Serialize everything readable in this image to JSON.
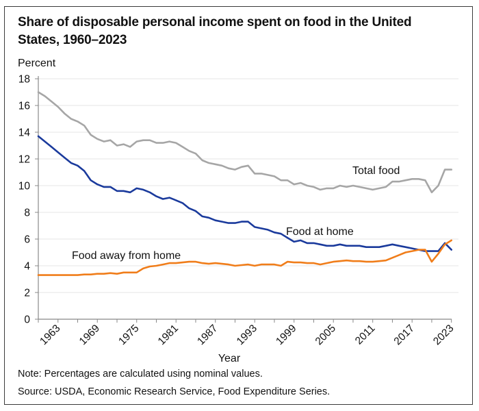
{
  "title": "Share of disposable personal income spent on food in the United States, 1960–2023",
  "unit_label": "Percent",
  "notes": {
    "note": "Note: Percentages are calculated using nominal values.",
    "source": "Source: USDA, Economic Research Service, Food Expenditure Series."
  },
  "chart_data": {
    "type": "line",
    "title": "Share of disposable personal income spent on food in the United States, 1960–2023",
    "xlabel": "Year",
    "ylabel": "Percent",
    "xlim": [
      1960,
      2023
    ],
    "ylim": [
      0,
      18
    ],
    "yticks": [
      0,
      2,
      4,
      6,
      8,
      10,
      12,
      14,
      16,
      18
    ],
    "xticks": [
      1963,
      1969,
      1975,
      1981,
      1987,
      1993,
      1999,
      2005,
      2011,
      2017,
      2023
    ],
    "grid": true,
    "legend": "inline labels",
    "x": [
      1960,
      1961,
      1962,
      1963,
      1964,
      1965,
      1966,
      1967,
      1968,
      1969,
      1970,
      1971,
      1972,
      1973,
      1974,
      1975,
      1976,
      1977,
      1978,
      1979,
      1980,
      1981,
      1982,
      1983,
      1984,
      1985,
      1986,
      1987,
      1988,
      1989,
      1990,
      1991,
      1992,
      1993,
      1994,
      1995,
      1996,
      1997,
      1998,
      1999,
      2000,
      2001,
      2002,
      2003,
      2004,
      2005,
      2006,
      2007,
      2008,
      2009,
      2010,
      2011,
      2012,
      2013,
      2014,
      2015,
      2016,
      2017,
      2018,
      2019,
      2020,
      2021,
      2022,
      2023
    ],
    "series": [
      {
        "name": "Total food",
        "color": "#a6a6a6",
        "values": [
          17.0,
          16.7,
          16.3,
          15.9,
          15.4,
          15.0,
          14.8,
          14.5,
          13.8,
          13.5,
          13.3,
          13.4,
          13.0,
          13.1,
          12.9,
          13.3,
          13.4,
          13.4,
          13.2,
          13.2,
          13.3,
          13.2,
          12.9,
          12.6,
          12.4,
          11.9,
          11.7,
          11.6,
          11.5,
          11.3,
          11.2,
          11.4,
          11.5,
          10.9,
          10.9,
          10.8,
          10.7,
          10.4,
          10.4,
          10.1,
          10.2,
          10.0,
          9.9,
          9.7,
          9.8,
          9.8,
          10.0,
          9.9,
          10.0,
          9.9,
          9.8,
          9.7,
          9.8,
          9.9,
          10.3,
          10.3,
          10.4,
          10.5,
          10.5,
          10.4,
          9.5,
          10.0,
          11.2,
          11.2
        ]
      },
      {
        "name": "Food at home",
        "color": "#1a3a9c",
        "values": [
          13.7,
          13.3,
          12.9,
          12.5,
          12.1,
          11.7,
          11.5,
          11.1,
          10.4,
          10.1,
          9.9,
          9.9,
          9.6,
          9.6,
          9.5,
          9.8,
          9.7,
          9.5,
          9.2,
          9.0,
          9.1,
          8.9,
          8.7,
          8.3,
          8.1,
          7.7,
          7.6,
          7.4,
          7.3,
          7.2,
          7.2,
          7.3,
          7.3,
          6.9,
          6.8,
          6.7,
          6.5,
          6.4,
          6.1,
          5.8,
          5.9,
          5.7,
          5.7,
          5.6,
          5.5,
          5.5,
          5.6,
          5.5,
          5.5,
          5.5,
          5.4,
          5.4,
          5.4,
          5.5,
          5.6,
          5.5,
          5.4,
          5.3,
          5.2,
          5.1,
          5.1,
          5.1,
          5.7,
          5.2
        ]
      },
      {
        "name": "Food away from home",
        "color": "#f07d1a",
        "values": [
          3.3,
          3.3,
          3.3,
          3.3,
          3.3,
          3.3,
          3.3,
          3.35,
          3.35,
          3.4,
          3.4,
          3.45,
          3.4,
          3.5,
          3.5,
          3.5,
          3.8,
          3.95,
          4.0,
          4.1,
          4.2,
          4.2,
          4.25,
          4.3,
          4.3,
          4.2,
          4.15,
          4.2,
          4.15,
          4.1,
          4.0,
          4.05,
          4.1,
          4.0,
          4.1,
          4.1,
          4.1,
          4.0,
          4.3,
          4.25,
          4.25,
          4.2,
          4.2,
          4.1,
          4.2,
          4.3,
          4.35,
          4.4,
          4.35,
          4.35,
          4.3,
          4.3,
          4.35,
          4.4,
          4.6,
          4.8,
          5.0,
          5.1,
          5.2,
          5.2,
          4.3,
          4.9,
          5.6,
          5.9
        ]
      }
    ],
    "annotations": [
      {
        "text": "Total food",
        "series": "Total food"
      },
      {
        "text": "Food at home",
        "series": "Food at home"
      },
      {
        "text": "Food away from home",
        "series": "Food away from home"
      }
    ]
  }
}
